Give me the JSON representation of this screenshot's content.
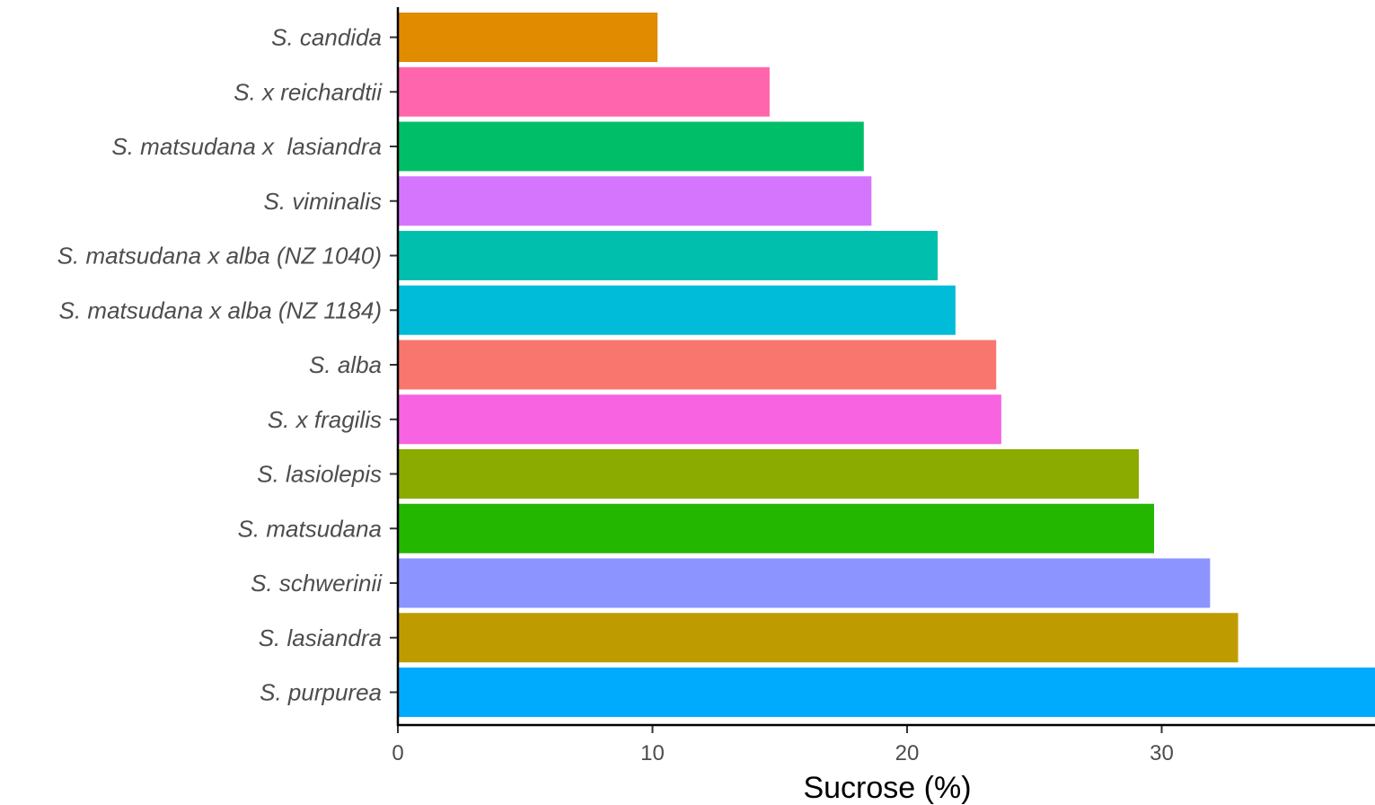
{
  "chart_data": {
    "type": "bar",
    "orientation": "horizontal",
    "categories": [
      "S. candida",
      "S. x reichardtii",
      "S. matsudana x  lasiandra",
      "S. viminalis",
      "S. matsudana x alba (NZ 1040)",
      "S. matsudana x alba (NZ 1184)",
      "S. alba",
      "S. x fragilis",
      "S. lasiolepis",
      "S. matsudana",
      "S. schwerinii",
      "S. lasiandra",
      "S. purpurea"
    ],
    "values": [
      10.2,
      14.6,
      18.3,
      18.6,
      21.2,
      21.9,
      23.5,
      23.7,
      29.1,
      29.7,
      31.9,
      33.0,
      38.4
    ],
    "colors": [
      "#E08B00",
      "#FF65AC",
      "#00BE67",
      "#D575FE",
      "#00BFAD",
      "#00BCD8",
      "#F8766D",
      "#F763E0",
      "#8BAB00",
      "#24B700",
      "#8C94FF",
      "#BE9C00",
      "#00ABFD"
    ],
    "xlabel": "Sucrose (%)",
    "ylabel": "",
    "xticks": [
      0,
      10,
      20,
      30
    ],
    "xlim": [
      0,
      38.4
    ],
    "grid": false,
    "legend": "none"
  }
}
